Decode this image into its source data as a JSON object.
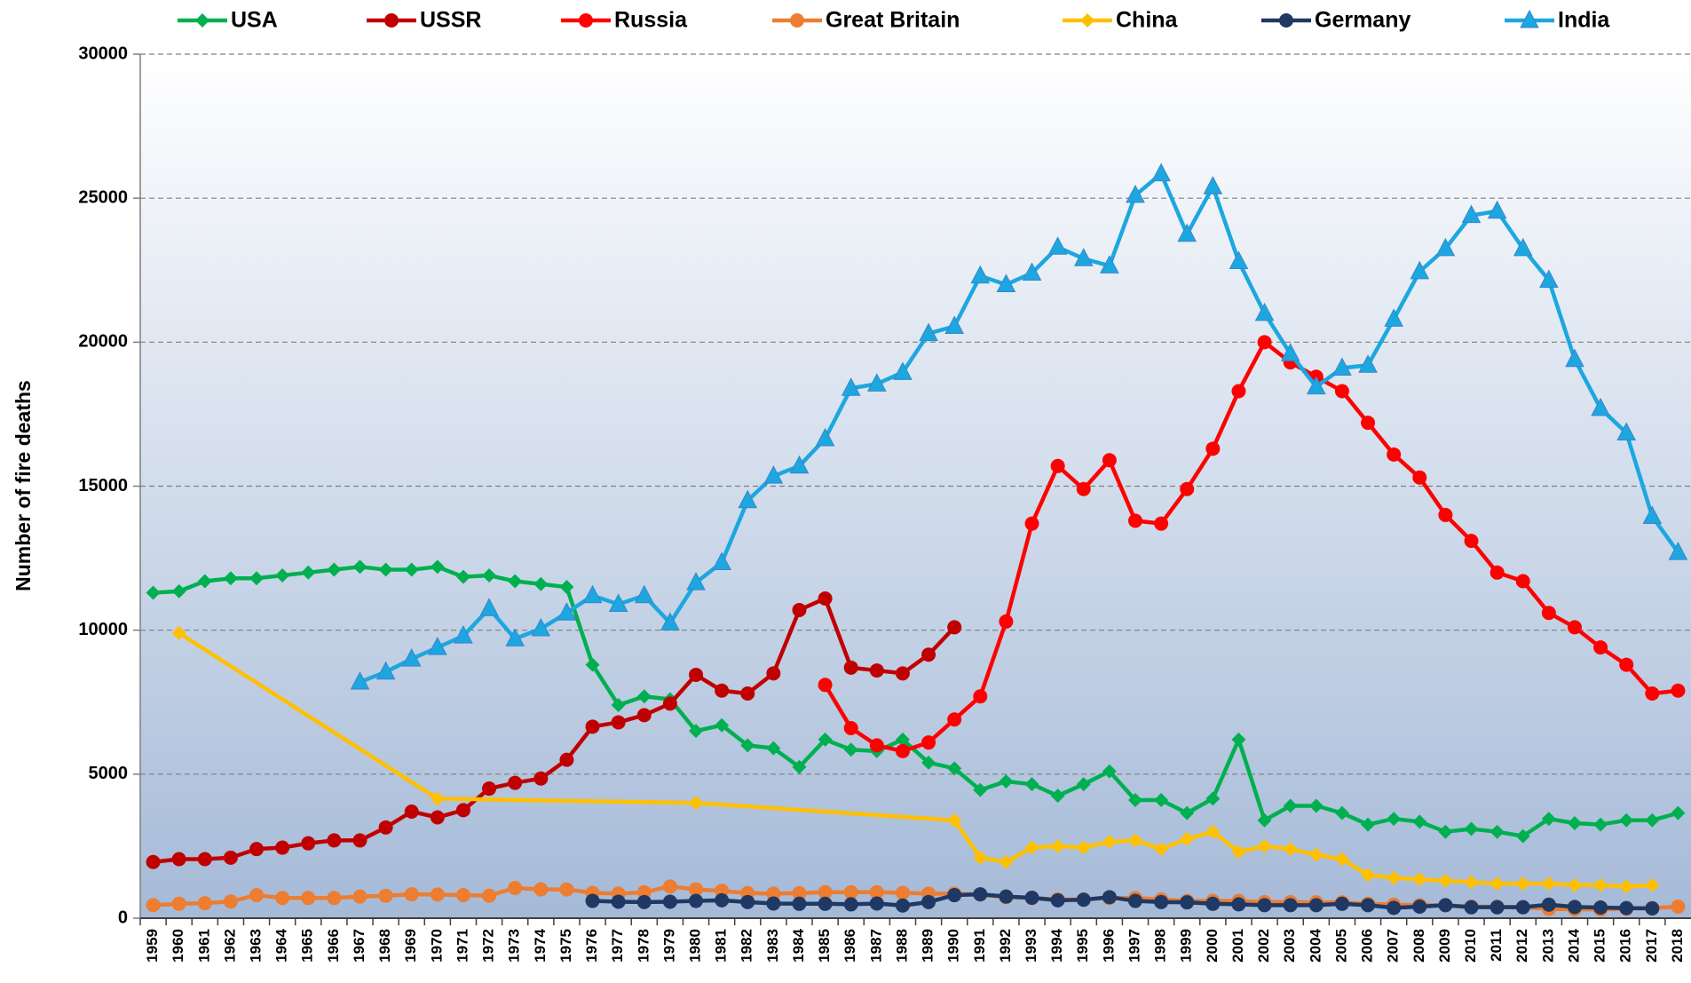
{
  "chart_data": {
    "type": "line",
    "y_label": "Number of fire deaths",
    "x": [
      1959,
      1960,
      1961,
      1962,
      1963,
      1964,
      1965,
      1966,
      1967,
      1968,
      1969,
      1970,
      1971,
      1972,
      1973,
      1974,
      1975,
      1976,
      1977,
      1978,
      1979,
      1980,
      1981,
      1982,
      1983,
      1984,
      1985,
      1986,
      1987,
      1988,
      1989,
      1990,
      1991,
      1992,
      1993,
      1994,
      1995,
      1996,
      1997,
      1998,
      1999,
      2000,
      2001,
      2002,
      2003,
      2004,
      2005,
      2006,
      2007,
      2008,
      2009,
      2010,
      2011,
      2012,
      2013,
      2014,
      2015,
      2016,
      2017,
      2018
    ],
    "xlim": [
      1958.5,
      2018.5
    ],
    "ylim": [
      0,
      30000
    ],
    "yticks": [
      0,
      5000,
      10000,
      15000,
      20000,
      25000,
      30000
    ],
    "grid": true,
    "legend": "top",
    "series": [
      {
        "name": "USA",
        "color": "#00b050",
        "marker": "diamond",
        "values": [
          11300,
          11350,
          11700,
          11800,
          11800,
          11900,
          12000,
          12100,
          12200,
          12100,
          12100,
          12200,
          11850,
          11900,
          11700,
          11600,
          11500,
          8800,
          7400,
          7700,
          7600,
          6500,
          6700,
          6000,
          5900,
          5250,
          6200,
          5850,
          5800,
          6200,
          5400,
          5200,
          4450,
          4750,
          4650,
          4250,
          4650,
          5100,
          4100,
          4100,
          3650,
          4150,
          6200,
          3400,
          3900,
          3900,
          3650,
          3250,
          3450,
          3350,
          3000,
          3100,
          3000,
          2850,
          3450,
          3300,
          3250,
          3400,
          3400,
          3650
        ]
      },
      {
        "name": "USSR",
        "color": "#c00000",
        "marker": "circle",
        "values": [
          1950,
          2050,
          2050,
          2100,
          2400,
          2450,
          2600,
          2700,
          2700,
          3150,
          3700,
          3500,
          3750,
          4500,
          4700,
          4850,
          5500,
          6650,
          6800,
          7050,
          7450,
          8450,
          7900,
          7800,
          8500,
          10700,
          11100,
          8700,
          8600,
          8500,
          9150,
          10100,
          null,
          null,
          null,
          null,
          null,
          null,
          null,
          null,
          null,
          null,
          null,
          null,
          null,
          null,
          null,
          null,
          null,
          null,
          null,
          null,
          null,
          null,
          null,
          null,
          null,
          null,
          null,
          null
        ]
      },
      {
        "name": "Russia",
        "color": "#ff0000",
        "marker": "circle",
        "values": [
          null,
          null,
          null,
          null,
          null,
          null,
          null,
          null,
          null,
          null,
          null,
          null,
          null,
          null,
          null,
          null,
          null,
          null,
          null,
          null,
          null,
          null,
          null,
          null,
          null,
          null,
          8100,
          6600,
          6000,
          5800,
          6100,
          6900,
          7700,
          10300,
          13700,
          15700,
          14900,
          15900,
          13800,
          13700,
          14900,
          16300,
          18300,
          20000,
          19300,
          18800,
          18300,
          17200,
          16100,
          15300,
          14000,
          13100,
          12000,
          11700,
          10600,
          10100,
          9400,
          8800,
          7800,
          7900
        ]
      },
      {
        "name": "Great Britain",
        "color": "#ed7d31",
        "marker": "circle",
        "values": [
          450,
          500,
          520,
          580,
          800,
          700,
          700,
          700,
          750,
          780,
          830,
          820,
          800,
          780,
          1050,
          1000,
          1000,
          880,
          850,
          900,
          1100,
          1000,
          950,
          870,
          850,
          870,
          900,
          900,
          900,
          880,
          850,
          850,
          820,
          730,
          700,
          650,
          650,
          700,
          700,
          650,
          600,
          600,
          600,
          560,
          560,
          550,
          550,
          500,
          470,
          450,
          450,
          400,
          400,
          380,
          320,
          310,
          300,
          330,
          350,
          400
        ]
      },
      {
        "name": "China",
        "color": "#ffc000",
        "marker": "diamond",
        "x": [
          1960,
          1970,
          1980,
          1990,
          1991,
          1992,
          1993,
          1994,
          1995,
          1996,
          1997,
          1998,
          1999,
          2000,
          2001,
          2002,
          2003,
          2004,
          2005,
          2006,
          2007,
          2008,
          2009,
          2010,
          2011,
          2012,
          2013,
          2014,
          2015,
          2016,
          2017
        ],
        "values": [
          9900,
          4150,
          4000,
          3400,
          2100,
          1950,
          2450,
          2500,
          2450,
          2650,
          2700,
          2400,
          2750,
          3000,
          2300,
          2500,
          2400,
          2200,
          2050,
          1500,
          1400,
          1350,
          1300,
          1250,
          1200,
          1200,
          1200,
          1150,
          1150,
          1100,
          1150
        ]
      },
      {
        "name": "Germany",
        "color": "#1f3864",
        "marker": "circle",
        "values": [
          null,
          null,
          null,
          null,
          null,
          null,
          null,
          null,
          null,
          null,
          null,
          null,
          null,
          null,
          null,
          null,
          null,
          600,
          570,
          560,
          570,
          600,
          620,
          560,
          510,
          500,
          500,
          480,
          510,
          440,
          560,
          800,
          830,
          750,
          710,
          620,
          640,
          730,
          600,
          560,
          550,
          500,
          480,
          450,
          450,
          450,
          500,
          450,
          360,
          400,
          450,
          380,
          380,
          380,
          470,
          390,
          370,
          350,
          340,
          null
        ]
      },
      {
        "name": "India",
        "color": "#1ca7e0",
        "marker": "triangle",
        "values": [
          null,
          null,
          null,
          null,
          null,
          null,
          null,
          null,
          8200,
          8550,
          9000,
          9400,
          9800,
          10750,
          9700,
          10050,
          10600,
          11200,
          10900,
          11200,
          10250,
          11650,
          12350,
          14500,
          15350,
          15700,
          16650,
          18400,
          18550,
          18950,
          20300,
          20550,
          22300,
          22000,
          22400,
          23300,
          22900,
          22650,
          25100,
          25850,
          23750,
          25400,
          22800,
          21000,
          19600,
          18450,
          19100,
          19200,
          20800,
          22450,
          23250,
          24400,
          24550,
          23250,
          22150,
          19400,
          17700,
          16850,
          13950,
          12700
        ]
      }
    ]
  }
}
